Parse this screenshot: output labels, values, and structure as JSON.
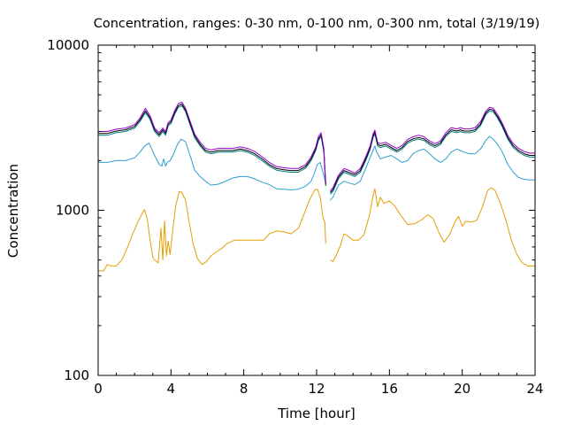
{
  "chart_data": {
    "type": "line",
    "title": "Concentration, ranges: 0-30 nm, 0-100 nm, 0-300 nm, total (3/19/19)",
    "xlabel": "Time [hour]",
    "ylabel": "Concentration",
    "xlim": [
      0,
      24
    ],
    "ylim": [
      100,
      10000
    ],
    "yscale": "log",
    "xticks": [
      "0",
      "4",
      "8",
      "12",
      "16",
      "20",
      "24"
    ],
    "yticks": [
      "100",
      "1000",
      "10000"
    ],
    "grid": false,
    "legend": "none",
    "series": [
      {
        "color": "#e69f00",
        "x": [
          0,
          0.3,
          0.5,
          0.7,
          1,
          1.3,
          1.6,
          1.9,
          2.2,
          2.4,
          2.55,
          2.7,
          2.85,
          3,
          3.1,
          3.3,
          3.45,
          3.55,
          3.65,
          3.75,
          3.85,
          3.95,
          4.1,
          4.25,
          4.45,
          4.6,
          4.8,
          5,
          5.2,
          5.45,
          5.7,
          5.95,
          6.2,
          6.5,
          6.8,
          7.1,
          7.5,
          7.9,
          8.3,
          8.7,
          9.1,
          9.4,
          9.8,
          10.2,
          10.6,
          11,
          11.3,
          11.6,
          11.9,
          12.05,
          12.2,
          12.35,
          12.45,
          12.5,
          null,
          12.75,
          12.9,
          13.1,
          13.3,
          13.5,
          13.7,
          14,
          14.3,
          14.6,
          14.9,
          15.1,
          15.2,
          15.35,
          15.5,
          15.7,
          16,
          16.3,
          16.6,
          17,
          17.4,
          17.8,
          18.1,
          18.4,
          18.7,
          19,
          19.3,
          19.6,
          19.8,
          20,
          20.2,
          20.5,
          20.8,
          21.1,
          21.4,
          21.6,
          21.8,
          22.1,
          22.4,
          22.7,
          23,
          23.3,
          23.6,
          24
        ],
        "y": [
          430,
          430,
          470,
          460,
          460,
          500,
          590,
          720,
          860,
          950,
          1010,
          880,
          660,
          520,
          500,
          480,
          780,
          500,
          860,
          530,
          650,
          540,
          760,
          1050,
          1300,
          1280,
          1150,
          850,
          640,
          510,
          470,
          490,
          530,
          560,
          590,
          630,
          660,
          660,
          660,
          660,
          660,
          720,
          750,
          740,
          720,
          780,
          940,
          1150,
          1330,
          1340,
          1200,
          900,
          850,
          630,
          null,
          500,
          490,
          540,
          610,
          720,
          700,
          660,
          660,
          710,
          930,
          1220,
          1350,
          1050,
          1200,
          1100,
          1140,
          1060,
          940,
          820,
          830,
          880,
          940,
          890,
          740,
          640,
          710,
          850,
          920,
          800,
          860,
          850,
          870,
          1040,
          1320,
          1370,
          1320,
          1100,
          870,
          660,
          540,
          480,
          460,
          460
        ]
      },
      {
        "color": "#2d9fd0",
        "x": [
          0,
          0.5,
          1,
          1.5,
          2,
          2.3,
          2.55,
          2.8,
          3.1,
          3.35,
          3.5,
          3.6,
          3.7,
          3.8,
          3.95,
          4.15,
          4.35,
          4.55,
          4.8,
          5.05,
          5.3,
          5.6,
          5.9,
          6.2,
          6.6,
          7,
          7.4,
          7.8,
          8.2,
          8.6,
          9.0,
          9.4,
          9.8,
          10.2,
          10.6,
          11,
          11.4,
          11.7,
          11.9,
          12.05,
          12.2,
          12.35,
          12.5,
          null,
          12.75,
          12.9,
          13.2,
          13.5,
          13.8,
          14.1,
          14.4,
          14.7,
          14.95,
          15.1,
          15.2,
          15.3,
          15.5,
          15.8,
          16.1,
          16.4,
          16.7,
          17,
          17.3,
          17.6,
          17.9,
          18.2,
          18.5,
          18.8,
          19.1,
          19.4,
          19.7,
          19.9,
          20.1,
          20.4,
          20.7,
          21,
          21.3,
          21.5,
          21.7,
          21.95,
          22.2,
          22.5,
          22.8,
          23.1,
          23.4,
          23.7,
          24
        ],
        "y": [
          1950,
          1950,
          2000,
          2000,
          2080,
          2250,
          2450,
          2550,
          2150,
          1900,
          1850,
          2050,
          1850,
          1950,
          2000,
          2200,
          2500,
          2700,
          2600,
          2150,
          1750,
          1600,
          1500,
          1420,
          1440,
          1500,
          1570,
          1600,
          1600,
          1550,
          1480,
          1430,
          1350,
          1340,
          1330,
          1340,
          1400,
          1500,
          1700,
          1900,
          1950,
          1700,
          1450,
          null,
          1150,
          1200,
          1420,
          1500,
          1460,
          1430,
          1500,
          1800,
          2100,
          2300,
          2450,
          2250,
          2050,
          2100,
          2150,
          2050,
          1950,
          2000,
          2200,
          2300,
          2350,
          2200,
          2050,
          1950,
          2050,
          2250,
          2350,
          2300,
          2250,
          2200,
          2200,
          2350,
          2650,
          2800,
          2700,
          2500,
          2250,
          1900,
          1700,
          1580,
          1540,
          1530,
          1530
        ]
      },
      {
        "color": "#008080",
        "x": [
          0,
          0.5,
          1,
          1.5,
          2,
          2.3,
          2.6,
          2.85,
          3.1,
          3.35,
          3.55,
          3.7,
          3.85,
          4.0,
          4.2,
          4.4,
          4.6,
          4.8,
          5.05,
          5.3,
          5.6,
          5.9,
          6.2,
          6.6,
          7,
          7.4,
          7.8,
          8.2,
          8.6,
          9.0,
          9.4,
          9.8,
          10.2,
          10.6,
          11,
          11.4,
          11.7,
          11.95,
          12.1,
          12.25,
          12.4,
          12.5,
          null,
          12.75,
          12.9,
          13.2,
          13.5,
          13.8,
          14.1,
          14.4,
          14.7,
          14.95,
          15.1,
          15.2,
          15.35,
          15.5,
          15.8,
          16.1,
          16.4,
          16.7,
          17,
          17.3,
          17.6,
          17.9,
          18.2,
          18.5,
          18.8,
          19.1,
          19.4,
          19.7,
          19.9,
          20.1,
          20.4,
          20.7,
          21,
          21.3,
          21.5,
          21.7,
          21.95,
          22.2,
          22.5,
          22.8,
          23.1,
          23.4,
          23.7,
          24
        ],
        "y": [
          2850,
          2850,
          2950,
          3000,
          3150,
          3450,
          3900,
          3550,
          3000,
          2800,
          3000,
          2850,
          3250,
          3350,
          3800,
          4200,
          4300,
          3950,
          3300,
          2750,
          2450,
          2250,
          2200,
          2250,
          2250,
          2250,
          2300,
          2250,
          2150,
          2000,
          1850,
          1750,
          1720,
          1700,
          1700,
          1800,
          2000,
          2300,
          2650,
          2800,
          2250,
          1400,
          null,
          1250,
          1300,
          1550,
          1700,
          1650,
          1600,
          1700,
          2000,
          2350,
          2750,
          2900,
          2450,
          2400,
          2450,
          2350,
          2250,
          2350,
          2550,
          2650,
          2700,
          2650,
          2500,
          2400,
          2500,
          2800,
          3000,
          2950,
          3000,
          2950,
          2950,
          3000,
          3250,
          3800,
          4000,
          3950,
          3600,
          3200,
          2700,
          2400,
          2250,
          2150,
          2100,
          2100
        ]
      },
      {
        "color": "#000000",
        "x": [
          0,
          0.5,
          1,
          1.5,
          2,
          2.3,
          2.6,
          2.85,
          3.1,
          3.35,
          3.55,
          3.7,
          3.85,
          4.0,
          4.2,
          4.4,
          4.6,
          4.8,
          5.05,
          5.3,
          5.6,
          5.9,
          6.2,
          6.6,
          7,
          7.4,
          7.8,
          8.2,
          8.6,
          9.0,
          9.4,
          9.8,
          10.2,
          10.6,
          11,
          11.4,
          11.7,
          11.95,
          12.1,
          12.25,
          12.4,
          12.5,
          null,
          12.75,
          12.9,
          13.2,
          13.5,
          13.8,
          14.1,
          14.4,
          14.7,
          14.95,
          15.1,
          15.2,
          15.35,
          15.5,
          15.8,
          16.1,
          16.4,
          16.7,
          17,
          17.3,
          17.6,
          17.9,
          18.2,
          18.5,
          18.8,
          19.1,
          19.4,
          19.7,
          19.9,
          20.1,
          20.4,
          20.7,
          21,
          21.3,
          21.5,
          21.7,
          21.95,
          22.2,
          22.5,
          22.8,
          23.1,
          23.4,
          23.7,
          24
        ],
        "y": [
          2920,
          2920,
          3020,
          3070,
          3220,
          3530,
          4000,
          3630,
          3070,
          2870,
          3070,
          2920,
          3320,
          3430,
          3890,
          4300,
          4400,
          4040,
          3380,
          2820,
          2510,
          2300,
          2250,
          2300,
          2300,
          2300,
          2350,
          2300,
          2200,
          2050,
          1890,
          1790,
          1760,
          1740,
          1740,
          1840,
          2050,
          2350,
          2710,
          2860,
          2300,
          1430,
          null,
          1280,
          1330,
          1590,
          1740,
          1690,
          1640,
          1740,
          2050,
          2400,
          2810,
          2970,
          2510,
          2460,
          2510,
          2400,
          2300,
          2400,
          2610,
          2710,
          2760,
          2710,
          2560,
          2460,
          2560,
          2860,
          3070,
          3020,
          3070,
          3020,
          3020,
          3070,
          3330,
          3890,
          4090,
          4040,
          3680,
          3270,
          2760,
          2460,
          2300,
          2200,
          2150,
          2150
        ]
      },
      {
        "color": "#9400d3",
        "x": [
          0,
          0.5,
          1,
          1.5,
          2,
          2.3,
          2.6,
          2.85,
          3.1,
          3.35,
          3.55,
          3.7,
          3.85,
          4.0,
          4.2,
          4.4,
          4.6,
          4.8,
          5.05,
          5.3,
          5.6,
          5.9,
          6.2,
          6.6,
          7,
          7.4,
          7.8,
          8.2,
          8.6,
          9.0,
          9.4,
          9.8,
          10.2,
          10.6,
          11,
          11.4,
          11.7,
          11.95,
          12.1,
          12.25,
          12.4,
          12.5,
          null,
          12.75,
          12.9,
          13.2,
          13.5,
          13.8,
          14.1,
          14.4,
          14.7,
          14.95,
          15.1,
          15.2,
          15.35,
          15.5,
          15.8,
          16.1,
          16.4,
          16.7,
          17,
          17.3,
          17.6,
          17.9,
          18.2,
          18.5,
          18.8,
          19.1,
          19.4,
          19.7,
          19.9,
          20.1,
          20.4,
          20.7,
          21,
          21.3,
          21.5,
          21.7,
          21.95,
          22.2,
          22.5,
          22.8,
          23.1,
          23.4,
          23.7,
          24
        ],
        "y": [
          3000,
          3000,
          3100,
          3150,
          3300,
          3620,
          4150,
          3730,
          3150,
          2950,
          3150,
          3000,
          3400,
          3520,
          4000,
          4420,
          4520,
          4150,
          3470,
          2900,
          2580,
          2370,
          2320,
          2370,
          2370,
          2370,
          2420,
          2370,
          2270,
          2110,
          1950,
          1840,
          1810,
          1790,
          1790,
          1890,
          2110,
          2420,
          2800,
          2950,
          2370,
          1470,
          null,
          1310,
          1370,
          1630,
          1790,
          1740,
          1680,
          1790,
          2110,
          2470,
          2900,
          3060,
          2580,
          2530,
          2580,
          2470,
          2370,
          2470,
          2690,
          2790,
          2850,
          2790,
          2630,
          2530,
          2630,
          2950,
          3170,
          3110,
          3170,
          3110,
          3110,
          3170,
          3430,
          4000,
          4200,
          4150,
          3790,
          3370,
          2850,
          2530,
          2370,
          2270,
          2220,
          2220
        ]
      }
    ]
  }
}
